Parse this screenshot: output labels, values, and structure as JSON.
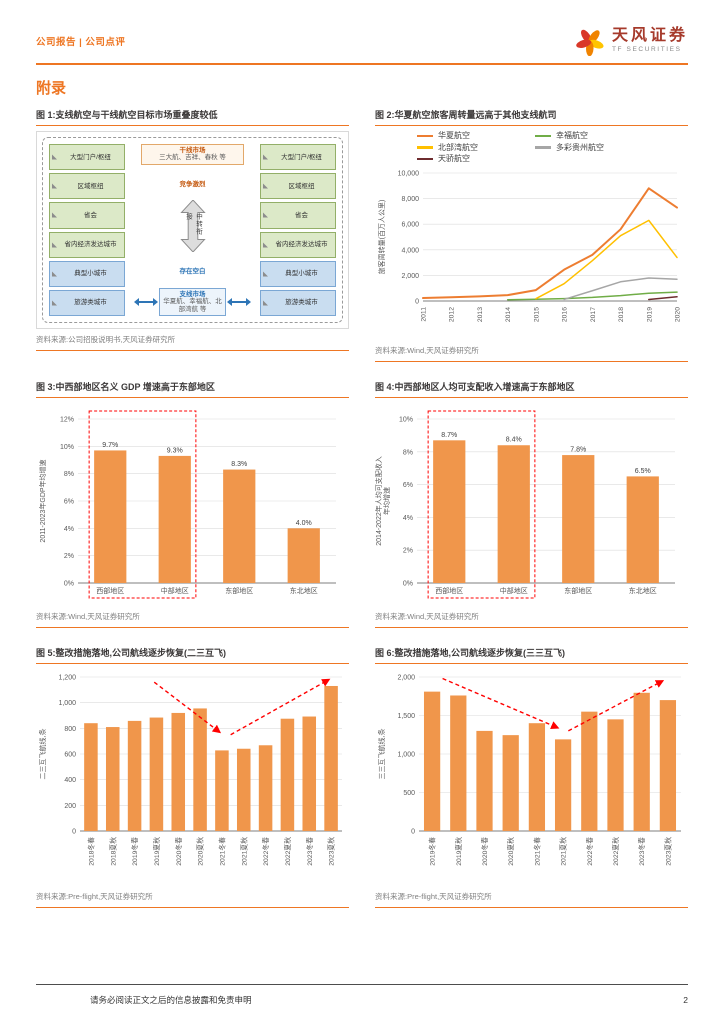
{
  "page": {
    "header": {
      "left": "公司报告 | 公司点评",
      "brand": "天风证券",
      "brand_sub": "TF SECURITIES"
    },
    "section_title": "附录",
    "footer": {
      "disclaimer": "请务必阅读正文之后的信息披露和免责申明",
      "page_number": "2"
    }
  },
  "colors": {
    "accent_orange": "#EE7623",
    "bar_orange": "#F0964B",
    "grid": "#DCDCDC",
    "axis_text": "#595959",
    "red_annotation": "#FF0000",
    "title_text": "#3B3838",
    "source_text": "#808080",
    "brand_red": "#A63A2B"
  },
  "icons": {
    "flower-logo-icon": "tf-securities-flower",
    "triangle-icon": "gray-corner-triangle",
    "double-arrow-icon": "hollow-vertical-double-arrow"
  },
  "figures": [
    {
      "id": "fig1",
      "title": "图 1:支线航空与干线航空目标市场重叠度较低",
      "source": "资料来源:公司招股说明书,天风证券研究所"
    },
    {
      "id": "fig2",
      "title": "图 2:华夏航空旅客周转量远高于其他支线航司",
      "source": "资料来源:Wind,天风证券研究所"
    },
    {
      "id": "fig3",
      "title": "图 3:中西部地区名义 GDP 增速高于东部地区",
      "source": "资料来源:Wind,天风证券研究所"
    },
    {
      "id": "fig4",
      "title": "图 4:中西部地区人均可支配收入增速高于东部地区",
      "source": "资料来源:Wind,天风证券研究所"
    },
    {
      "id": "fig5",
      "title": "图 5:整改措施落地,公司航线逐步恢复(二三互飞)",
      "source": "资料来源:Pre-flight,天风证券研究所"
    },
    {
      "id": "fig6",
      "title": "图 6:整改措施落地,公司航线逐步恢复(三三互飞)",
      "source": "资料来源:Pre-flight,天风证券研究所"
    }
  ],
  "diagram": {
    "left_boxes_green": [
      "大型门户/枢纽",
      "区域枢纽",
      "省会",
      "省内经济发达城市"
    ],
    "left_boxes_blue": [
      "典型小城市",
      "旅游类城市"
    ],
    "right_boxes_green": [
      "大型门户/枢纽",
      "区域枢纽",
      "省会",
      "省内经济发达城市"
    ],
    "right_boxes_blue": [
      "典型小城市",
      "旅游类城市"
    ],
    "trunk_market": {
      "title": "干线市场",
      "sub": "三大航、吉祥、春秋 等"
    },
    "regional_market": {
      "title": "支线市场",
      "sub": "华夏航、幸福航、北部湾航 等"
    },
    "label_competition": "竞争激烈",
    "label_gap": "存在空白",
    "center_arrow_text": "中转衔接"
  },
  "chart_data": [
    {
      "id": "fig2",
      "type": "line",
      "title": "华夏航空旅客周转量远高于其他支线航司",
      "ylabel": "旅客周转量(百万人公里)",
      "x": [
        "2011",
        "2012",
        "2013",
        "2014",
        "2015",
        "2016",
        "2017",
        "2018",
        "2019",
        "2020"
      ],
      "ylim": [
        0,
        10000
      ],
      "ytick_step": 2000,
      "grid": true,
      "legend_position": "top",
      "series": [
        {
          "name": "华夏航空",
          "color": "#ED7D31",
          "values": [
            230,
            290,
            360,
            460,
            850,
            2450,
            3600,
            5600,
            8800,
            7300
          ]
        },
        {
          "name": "幸福航空",
          "color": "#70AD47",
          "values": [
            null,
            null,
            null,
            100,
            140,
            190,
            280,
            420,
            610,
            690
          ]
        },
        {
          "name": "北部湾航空",
          "color": "#FFC000",
          "values": [
            null,
            null,
            null,
            null,
            180,
            1350,
            3150,
            5100,
            6300,
            3400
          ]
        },
        {
          "name": "多彩贵州航空",
          "color": "#A6A6A6",
          "values": [
            null,
            null,
            null,
            null,
            null,
            120,
            800,
            1500,
            1800,
            1700
          ]
        },
        {
          "name": "天骄航空",
          "color": "#6E2C2F",
          "values": [
            null,
            null,
            null,
            null,
            null,
            null,
            null,
            null,
            120,
            330
          ]
        }
      ]
    },
    {
      "id": "fig3",
      "type": "bar",
      "categories": [
        "西部地区",
        "中部地区",
        "东部地区",
        "东北地区"
      ],
      "values": [
        9.7,
        9.3,
        8.3,
        4.0
      ],
      "value_labels": [
        "9.7%",
        "9.3%",
        "8.3%",
        "4.0%"
      ],
      "ylabel": "2011-2023年GDP年均增速",
      "ylim": [
        0,
        12
      ],
      "ytick_step": 2,
      "tick_suffix": "%",
      "highlight": {
        "from": 0,
        "to": 1,
        "style": "red-dashed-box"
      }
    },
    {
      "id": "fig4",
      "type": "bar",
      "categories": [
        "西部地区",
        "中部地区",
        "东部地区",
        "东北地区"
      ],
      "values": [
        8.7,
        8.4,
        7.8,
        6.5
      ],
      "value_labels": [
        "8.7%",
        "8.4%",
        "7.8%",
        "6.5%"
      ],
      "ylabel": "2014-2022年人均可支配收入",
      "ylabel2": "年均增速",
      "ylim": [
        0,
        10
      ],
      "ytick_step": 2,
      "tick_suffix": "%",
      "highlight": {
        "from": 0,
        "to": 1,
        "style": "red-dashed-box"
      }
    },
    {
      "id": "fig5",
      "type": "bar",
      "categories": [
        "2018冬春",
        "2018夏秋",
        "2019冬春",
        "2019夏秋",
        "2020冬春",
        "2020夏秋",
        "2021冬春",
        "2021夏秋",
        "2022冬春",
        "2022夏秋",
        "2023冬春",
        "2023夏秋"
      ],
      "values": [
        840,
        810,
        858,
        884,
        920,
        955,
        628,
        641,
        668,
        875,
        892,
        1130
      ],
      "ylabel": "二三互飞航线,条",
      "ylim": [
        0,
        1200
      ],
      "ytick_step": 200,
      "trend_arrows": [
        {
          "from_x": 3.4,
          "from_y": 1160,
          "to_x": 6.4,
          "to_y": 770
        },
        {
          "from_x": 6.9,
          "from_y": 750,
          "to_x": 11.4,
          "to_y": 1180
        }
      ]
    },
    {
      "id": "fig6",
      "type": "bar",
      "categories": [
        "2019冬春",
        "2019夏秋",
        "2020冬春",
        "2020夏秋",
        "2021冬春",
        "2021夏秋",
        "2022冬春",
        "2022夏秋",
        "2023冬春",
        "2023夏秋"
      ],
      "values": [
        1810,
        1760,
        1300,
        1245,
        1400,
        1190,
        1550,
        1450,
        1795,
        1700
      ],
      "ylabel": "三三互飞航线,条",
      "ylim": [
        0,
        2000
      ],
      "ytick_step": 500,
      "trend_arrows": [
        {
          "from_x": 0.9,
          "from_y": 1980,
          "to_x": 5.3,
          "to_y": 1340
        },
        {
          "from_x": 5.7,
          "from_y": 1300,
          "to_x": 9.3,
          "to_y": 1950
        }
      ]
    }
  ]
}
